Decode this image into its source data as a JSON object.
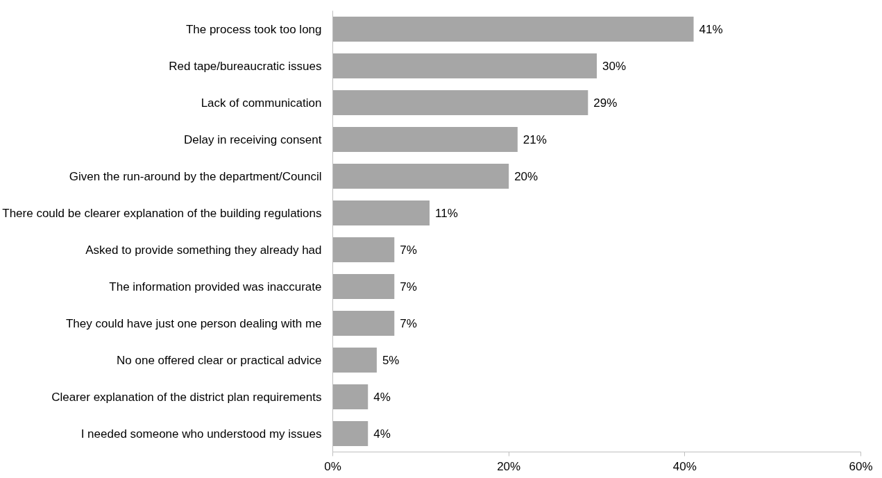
{
  "chart_data": {
    "type": "bar",
    "orientation": "horizontal",
    "categories": [
      "The process took too long",
      "Red tape/bureaucratic issues",
      "Lack of communication",
      "Delay in receiving consent",
      "Given the run-around by the department/Council",
      "There could be clearer explanation of the building regulations",
      "Asked to provide something they already had",
      "The information provided was inaccurate",
      "They could have just one person dealing with me",
      "No one offered clear or practical advice",
      "Clearer explanation of the district plan requirements",
      "I needed someone who understood my issues"
    ],
    "values": [
      41,
      30,
      29,
      21,
      20,
      11,
      7,
      7,
      7,
      5,
      4,
      4
    ],
    "value_labels": [
      "41%",
      "30%",
      "29%",
      "21%",
      "20%",
      "11%",
      "7%",
      "7%",
      "7%",
      "5%",
      "4%",
      "4%"
    ],
    "color": "#a6a6a6",
    "xlim": [
      0,
      60
    ],
    "xticks": [
      {
        "value": 0,
        "label": "0%"
      },
      {
        "value": 20,
        "label": "20%"
      },
      {
        "value": 40,
        "label": "40%"
      },
      {
        "value": 60,
        "label": "60%"
      }
    ],
    "grid": false
  }
}
